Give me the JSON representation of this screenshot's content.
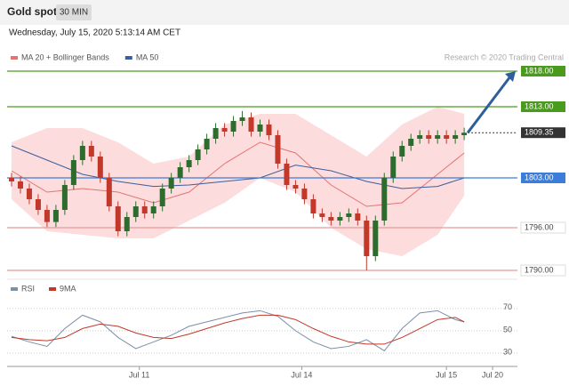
{
  "header": {
    "title": "Gold spot",
    "timeframe": "30 MIN",
    "date": "Wednesday, July 15, 2020 5:13:14 AM CET",
    "credit": "Research © 2020 Trading Central"
  },
  "chart_data": [
    {
      "type": "candlestick",
      "xlim": [
        -0.5,
        57
      ],
      "ylim": [
        1789,
        1821
      ],
      "x": [
        0,
        1,
        2,
        3,
        4,
        5,
        6,
        7,
        8,
        9,
        10,
        11,
        12,
        13,
        14,
        15,
        16,
        17,
        18,
        19,
        20,
        21,
        22,
        23,
        24,
        25,
        26,
        27,
        28,
        29,
        30,
        31,
        32,
        33,
        34,
        35,
        36,
        37,
        38,
        39,
        40,
        41,
        42,
        43,
        44,
        45,
        46,
        47,
        48,
        49,
        50,
        51
      ],
      "open": [
        1803,
        1802.5,
        1801.5,
        1800,
        1798.5,
        1796.8,
        1798.5,
        1802,
        1805.5,
        1807.5,
        1806,
        1803,
        1799,
        1795.5,
        1797.5,
        1799,
        1798,
        1799,
        1801.5,
        1803,
        1804.5,
        1805.5,
        1807,
        1808.5,
        1810,
        1809.5,
        1811,
        1811.5,
        1809.5,
        1810.5,
        1809,
        1805,
        1802,
        1801.5,
        1800,
        1798,
        1797.5,
        1797,
        1797.5,
        1798,
        1797,
        1792,
        1797,
        1803,
        1806,
        1807.5,
        1808.5,
        1809,
        1808.5,
        1809,
        1808.5,
        1809
      ],
      "high": [
        1803.7,
        1803.2,
        1802.2,
        1800.7,
        1799.2,
        1799.2,
        1802.7,
        1806.2,
        1808.2,
        1808.2,
        1806.7,
        1803.7,
        1799.7,
        1798.2,
        1799.7,
        1799.7,
        1799.7,
        1802.2,
        1803.7,
        1805.2,
        1806.2,
        1807.7,
        1809.2,
        1810.7,
        1810.7,
        1811.7,
        1812.4,
        1812.2,
        1811.2,
        1811.2,
        1809.7,
        1805.7,
        1802.7,
        1802.2,
        1800.7,
        1798.7,
        1798.2,
        1798.2,
        1798.7,
        1798.7,
        1797.7,
        1797.7,
        1803.7,
        1806.7,
        1808.2,
        1809.2,
        1809.7,
        1809.7,
        1809.7,
        1809.7,
        1809.7,
        1810.05
      ],
      "low": [
        1801.8,
        1800.8,
        1799.3,
        1797.8,
        1796.1,
        1796.1,
        1797.8,
        1801.3,
        1804.8,
        1805.3,
        1802.3,
        1798.3,
        1794.8,
        1794.8,
        1796.8,
        1797.3,
        1797.3,
        1798.3,
        1800.8,
        1802.3,
        1803.8,
        1804.8,
        1806.3,
        1807.8,
        1808.8,
        1808.8,
        1810.3,
        1808.8,
        1808.8,
        1808.3,
        1804.3,
        1801.3,
        1800.8,
        1799.3,
        1797.3,
        1796.8,
        1796.3,
        1796.3,
        1796.8,
        1796.3,
        1790,
        1791.3,
        1796.3,
        1802.3,
        1805.3,
        1806.8,
        1807.8,
        1807.8,
        1807.8,
        1807.8,
        1807.8,
        1808.3
      ],
      "close": [
        1802.5,
        1801.5,
        1800,
        1798.5,
        1796.8,
        1798.5,
        1802,
        1805.5,
        1807.5,
        1806,
        1803,
        1799,
        1795.5,
        1797.5,
        1799,
        1798,
        1799,
        1801.5,
        1803,
        1804.5,
        1805.5,
        1807,
        1808.5,
        1810,
        1809.5,
        1811,
        1811.5,
        1809.5,
        1810.5,
        1809,
        1805,
        1802,
        1801.5,
        1800,
        1798,
        1797.5,
        1797,
        1797.5,
        1798,
        1797,
        1792,
        1797,
        1803,
        1806,
        1807.5,
        1808.5,
        1809,
        1808.5,
        1809,
        1808.5,
        1809,
        1809.35
      ],
      "up_color": "#2e6b2e",
      "down_color": "#c0392b",
      "overlays": [
        {
          "name": "MA 20 + Bollinger Bands",
          "color": "#e57373",
          "band_color": "#fbd3d3",
          "x": [
            0,
            4,
            8,
            12,
            16,
            20,
            24,
            28,
            32,
            36,
            40,
            44,
            48,
            51
          ],
          "values": [
            1804,
            1801,
            1801.5,
            1801,
            1799.5,
            1801,
            1805,
            1808,
            1806.5,
            1802,
            1799,
            1799.5,
            1803.5,
            1806.5
          ],
          "upper": [
            1808,
            1810,
            1810,
            1808,
            1805,
            1806,
            1810.5,
            1812,
            1812,
            1809,
            1806,
            1810.5,
            1813,
            1812
          ],
          "lower": [
            1800,
            1795.5,
            1795,
            1794.5,
            1794.5,
            1797,
            1799.5,
            1803,
            1801,
            1796,
            1793,
            1792,
            1795,
            1800.5
          ]
        },
        {
          "name": "MA 50",
          "color": "#3a5f9e",
          "x": [
            0,
            4,
            8,
            12,
            16,
            20,
            24,
            28,
            32,
            36,
            40,
            44,
            48,
            51
          ],
          "values": [
            1807.5,
            1805.5,
            1803.5,
            1802.5,
            1801.8,
            1802,
            1802.5,
            1803,
            1804.8,
            1804,
            1802.5,
            1801.5,
            1801.8,
            1803
          ]
        }
      ],
      "levels": [
        {
          "value": 1818,
          "label": "1818.00",
          "color": "#4a9a1e",
          "filled": true
        },
        {
          "value": 1813,
          "label": "1813.00",
          "color": "#4a9a1e",
          "filled": true
        },
        {
          "value": 1809.35,
          "label": "1809.35",
          "color": "#333333",
          "filled": true,
          "style": "dotted"
        },
        {
          "value": 1803,
          "label": "1803.00",
          "color": "#3b7dd8",
          "filled": true
        },
        {
          "value": 1796,
          "label": "1796.00",
          "color": "#e89a9a",
          "filled": false
        },
        {
          "value": 1790,
          "label": "1790.00",
          "color": "#e89a9a",
          "filled": false
        }
      ]
    },
    {
      "type": "line",
      "xlim": [
        -0.5,
        57
      ],
      "ylim": [
        18,
        93
      ],
      "yticks": [
        30,
        50,
        70
      ],
      "x": [
        0,
        2,
        4,
        6,
        8,
        10,
        12,
        14,
        16,
        18,
        20,
        22,
        24,
        26,
        28,
        30,
        32,
        34,
        36,
        38,
        40,
        42,
        44,
        46,
        48,
        50,
        51
      ],
      "series": [
        {
          "name": "RSI",
          "color": "#7a8fa8",
          "values": [
            45,
            40,
            36,
            52,
            64,
            58,
            44,
            34,
            40,
            46,
            54,
            58,
            62,
            66,
            68,
            63,
            50,
            40,
            34,
            36,
            42,
            32,
            52,
            66,
            68,
            60,
            58
          ]
        },
        {
          "name": "9MA",
          "color": "#c0392b",
          "values": [
            44,
            42,
            41,
            44,
            52,
            56,
            54,
            48,
            44,
            43,
            47,
            52,
            57,
            61,
            64,
            64,
            60,
            52,
            45,
            40,
            38,
            38,
            44,
            52,
            60,
            62,
            58
          ]
        }
      ],
      "xticks": [
        {
          "value": 14.4,
          "label": "Jul 11"
        },
        {
          "value": 32.7,
          "label": "Jul 14"
        },
        {
          "value": 49,
          "label": "Jul 15"
        },
        {
          "value": 54.2,
          "label": "Jul 20"
        }
      ]
    }
  ]
}
